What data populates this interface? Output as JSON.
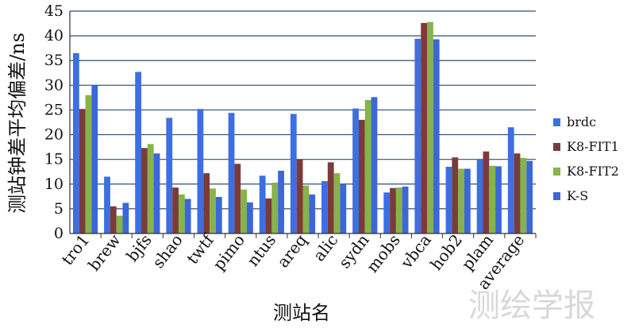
{
  "chart_data": {
    "type": "bar",
    "title": "",
    "xlabel": "测站名",
    "ylabel": "测站钟差平均偏差/ns",
    "ylim": [
      0,
      45
    ],
    "yticks": [
      0,
      5,
      10,
      15,
      20,
      25,
      30,
      35,
      40,
      45
    ],
    "grid": true,
    "legend_position": "right",
    "categories": [
      "tro1",
      "brew",
      "bjfs",
      "shao",
      "twtf",
      "pimo",
      "ntus",
      "areq",
      "alic",
      "sydn",
      "mobs",
      "vbca",
      "hob2",
      "plam",
      "average"
    ],
    "series": [
      {
        "name": "brdc",
        "color": "#3d6fe0",
        "values": [
          36.5,
          11.5,
          32.7,
          23.4,
          25.2,
          24.4,
          11.7,
          24.2,
          10.6,
          25.3,
          8.3,
          39.4,
          13.5,
          15.0,
          21.5
        ]
      },
      {
        "name": "K8-FIT1",
        "color": "#7b3b3b",
        "values": [
          25.2,
          5.5,
          17.3,
          9.3,
          12.2,
          14.1,
          7.1,
          15.0,
          14.4,
          23.0,
          9.2,
          42.6,
          15.4,
          16.6,
          16.2
        ]
      },
      {
        "name": "K8-FIT2",
        "color": "#86b34a",
        "values": [
          28.0,
          3.6,
          18.1,
          7.9,
          9.1,
          8.9,
          10.3,
          9.7,
          12.2,
          27.0,
          9.3,
          42.8,
          13.1,
          13.7,
          15.3
        ]
      },
      {
        "name": "K-S",
        "color": "#3c67d8",
        "values": [
          30.0,
          6.2,
          16.2,
          7.0,
          7.4,
          6.3,
          12.7,
          7.9,
          10.0,
          27.6,
          9.5,
          39.3,
          13.1,
          13.6,
          14.7
        ]
      }
    ]
  },
  "watermark": "测绘学报"
}
